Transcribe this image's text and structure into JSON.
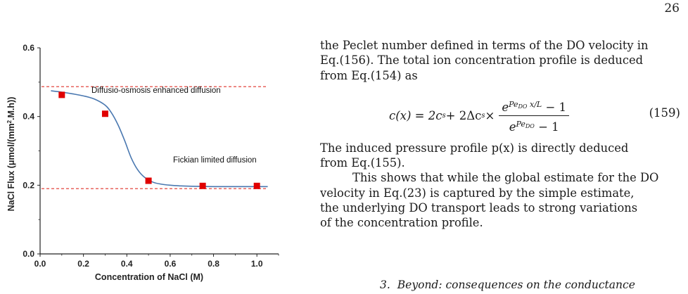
{
  "page_number": "26",
  "figure": {
    "annotations": {
      "upper": "Diffusio-osmosis enhanced diffusion",
      "lower": "Fickian limited diffusion"
    },
    "ylabel_main": "NaCl Flux (",
    "ylabel_mu": "μ",
    "ylabel_rest": "mol/(mm",
    "ylabel_sup": "2",
    "ylabel_end": ".M.h))",
    "xlabel": "Concentration of NaCl (M)"
  },
  "chart_data": {
    "type": "scatter",
    "xlabel": "Concentration of NaCl (M)",
    "ylabel": "NaCl Flux (μmol/(mm2.M.h))",
    "xlim": [
      0.0,
      1.1
    ],
    "ylim": [
      0.0,
      0.6
    ],
    "x_ticks": [
      "0.0",
      "0.2",
      "0.4",
      "0.6",
      "0.8",
      "1.0"
    ],
    "y_ticks": [
      "0.0",
      "0.2",
      "0.4",
      "0.6"
    ],
    "points": {
      "x": [
        0.1,
        0.3,
        0.5,
        0.75,
        1.0
      ],
      "y": [
        0.463,
        0.408,
        0.213,
        0.198,
        0.198
      ],
      "color": "#e00000"
    },
    "fit_curve": {
      "x": [
        0.05,
        0.1,
        0.15,
        0.2,
        0.25,
        0.3,
        0.33,
        0.36,
        0.39,
        0.42,
        0.45,
        0.48,
        0.52,
        0.56,
        0.6,
        0.65,
        0.7,
        0.8,
        0.9,
        1.0,
        1.05
      ],
      "y": [
        0.475,
        0.471,
        0.466,
        0.46,
        0.451,
        0.433,
        0.41,
        0.375,
        0.33,
        0.28,
        0.245,
        0.224,
        0.209,
        0.203,
        0.2,
        0.198,
        0.197,
        0.196,
        0.196,
        0.196,
        0.196
      ],
      "color": "#4a78b0"
    },
    "reference_lines": [
      {
        "y": 0.487,
        "style": "dashed",
        "color": "#e0302a"
      },
      {
        "y": 0.19,
        "style": "dashed",
        "color": "#e0302a"
      }
    ],
    "grid": false,
    "legend": "none"
  },
  "text": {
    "para1_line1": "the Peclet number defined in terms of the DO velocity in",
    "para1_line2": "Eq.(156).  The total ion concentration profile is deduced",
    "para1_line3": "from Eq.(154) as",
    "equation": {
      "lhs": "c(x) = 2c",
      "lhs_sub": "s",
      "mid": " + 2Δc",
      "mid_sub": "s",
      "times": " × ",
      "num_base": "e",
      "num_sup": "Pe",
      "num_sup_sub": "DO",
      "num_sup_frac": " x/L",
      "num_tail": " − 1",
      "den_base": "e",
      "den_sup": "Pe",
      "den_sup_sub": "DO",
      "den_tail": " − 1",
      "number": "(159)"
    },
    "para2_line1": "The induced pressure profile p(x) is directly deduced",
    "para2_line2": "from Eq.(155).",
    "para3_line1": "This shows that while the global estimate for the DO",
    "para3_line2": "velocity in Eq.(23) is captured by the simple estimate,",
    "para3_line3": "the underlying DO transport leads to strong variations",
    "para3_line4": "of the concentration profile.",
    "section_number": "3.",
    "section_title": "Beyond: consequences on the conductance"
  }
}
